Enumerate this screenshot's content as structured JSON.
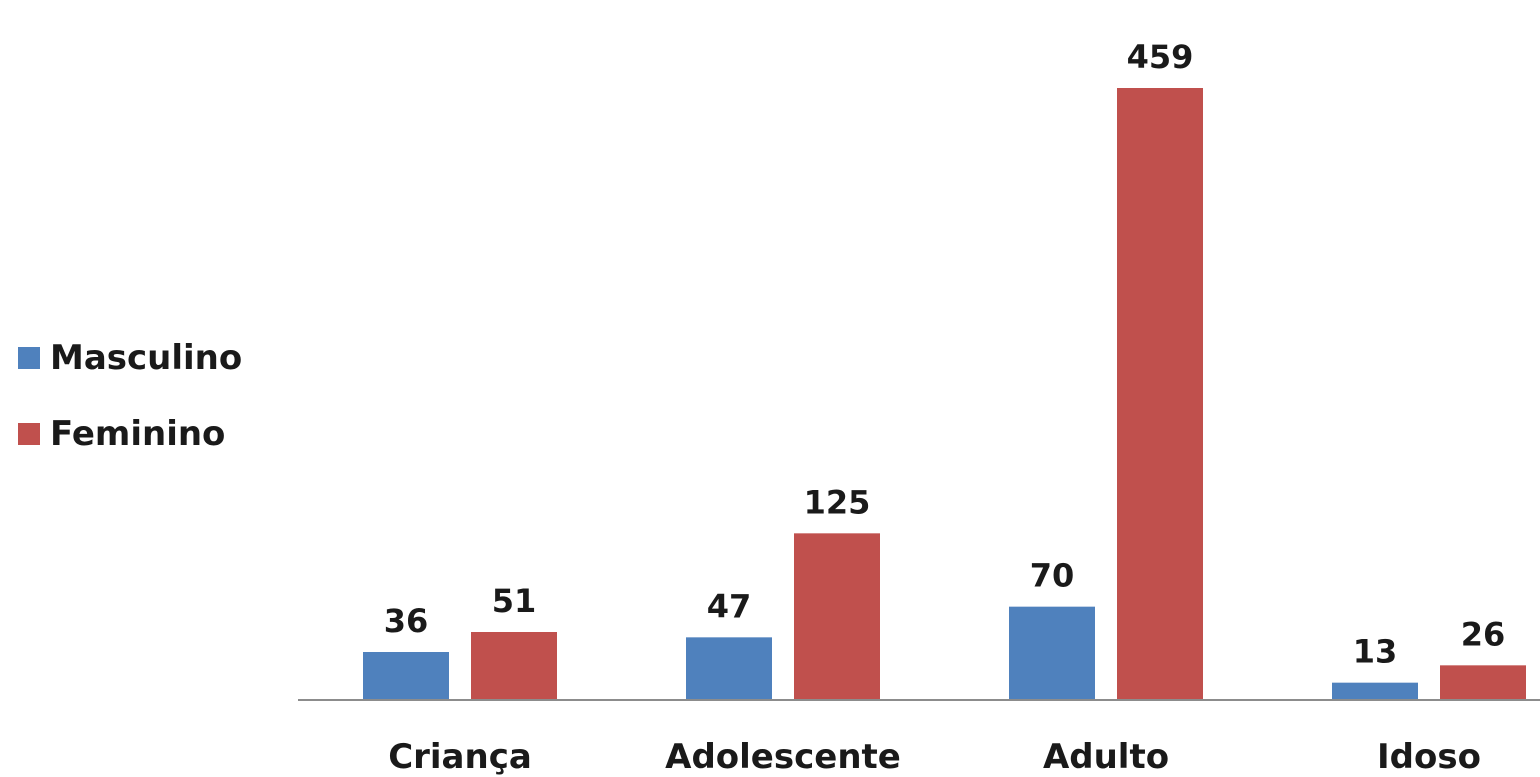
{
  "chart_data": {
    "type": "bar",
    "categories": [
      "Criança",
      "Adolescente",
      "Adulto",
      "Idoso"
    ],
    "series": [
      {
        "name": "Masculino",
        "values": [
          36,
          47,
          70,
          13
        ],
        "color": "#4f81bd"
      },
      {
        "name": "Feminino",
        "values": [
          51,
          125,
          459,
          26
        ],
        "color": "#c0504d"
      }
    ],
    "ylim": [
      0,
      459
    ],
    "grid": false,
    "legend_position": "left",
    "show_data_labels": true
  }
}
